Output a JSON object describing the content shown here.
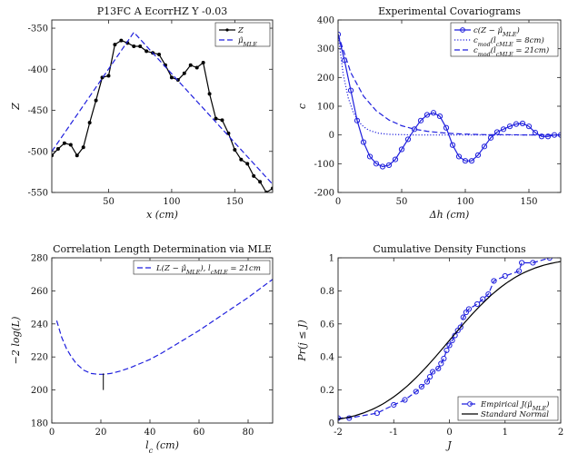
{
  "chart_data": [
    {
      "type": "line",
      "title": "P13FC A EcorrHZ Y -0.03",
      "xlabel": "x (cm)",
      "ylabel": "Z",
      "xlim": [
        5,
        180
      ],
      "ylim": [
        -550,
        -340
      ],
      "xticks": [
        50,
        100,
        150
      ],
      "yticks": [
        -550,
        -500,
        -450,
        -400,
        -350
      ],
      "xticklabels": [
        "50",
        "100",
        "150"
      ],
      "yticklabels": [
        "-550",
        "-500",
        "-450",
        "-400",
        "-350"
      ],
      "legend_position": "top-right",
      "series": [
        {
          "name": "Z",
          "style": "solid-marker-dot",
          "color": "#000000",
          "x": [
            5,
            10,
            15,
            20,
            25,
            30,
            35,
            40,
            45,
            50,
            55,
            60,
            65,
            70,
            75,
            80,
            85,
            90,
            95,
            100,
            105,
            110,
            115,
            120,
            125,
            130,
            135,
            140,
            145,
            150,
            155,
            160,
            165,
            170,
            175,
            180
          ],
          "y": [
            -505,
            -497,
            -490,
            -492,
            -505,
            -495,
            -465,
            -438,
            -410,
            -408,
            -370,
            -365,
            -368,
            -372,
            -372,
            -378,
            -380,
            -382,
            -395,
            -410,
            -413,
            -405,
            -395,
            -398,
            -392,
            -430,
            -460,
            -462,
            -478,
            -498,
            -510,
            -515,
            -530,
            -537,
            -550,
            -545
          ]
        },
        {
          "name": "μ̂_MLE",
          "style": "dashed",
          "color": "#1f1fdd",
          "x": [
            5,
            70,
            180
          ],
          "y": [
            -500,
            -355,
            -540
          ]
        }
      ]
    },
    {
      "type": "line",
      "title": "Experimental Covariograms",
      "xlabel": "Δh (cm)",
      "ylabel": "c",
      "xlim": [
        0,
        175
      ],
      "ylim": [
        -200,
        400
      ],
      "xticks": [
        0,
        50,
        100,
        150
      ],
      "yticks": [
        -200,
        -100,
        0,
        100,
        200,
        300,
        400
      ],
      "xticklabels": [
        "0",
        "50",
        "100",
        "150"
      ],
      "yticklabels": [
        "-200",
        "-100",
        "0",
        "100",
        "200",
        "300",
        "400"
      ],
      "legend_position": "top-right",
      "series": [
        {
          "name": "c(Z − μ̂_MLE)",
          "style": "solid-marker-circle",
          "color": "#1f1fdd",
          "x": [
            0,
            5,
            10,
            15,
            20,
            25,
            30,
            35,
            40,
            45,
            50,
            55,
            60,
            65,
            70,
            75,
            80,
            85,
            90,
            95,
            100,
            105,
            110,
            115,
            120,
            125,
            130,
            135,
            140,
            145,
            150,
            155,
            160,
            165,
            170,
            175
          ],
          "y": [
            350,
            260,
            155,
            50,
            -25,
            -75,
            -100,
            -110,
            -105,
            -85,
            -50,
            -15,
            20,
            50,
            70,
            77,
            65,
            25,
            -35,
            -75,
            -90,
            -90,
            -70,
            -40,
            -10,
            10,
            20,
            30,
            38,
            40,
            30,
            8,
            -5,
            -5,
            0,
            0
          ]
        },
        {
          "name": "c_mod(l_cMLE = 8cm)",
          "style": "dotted",
          "color": "#1f1fdd",
          "x": [
            0,
            4,
            8,
            12,
            16,
            20,
            24,
            28,
            32,
            40,
            50,
            60,
            80,
            100,
            125,
            150,
            175
          ],
          "y": [
            350,
            212,
            129,
            78,
            47,
            29,
            17,
            11,
            6,
            2,
            1,
            0,
            0,
            0,
            0,
            0,
            0
          ]
        },
        {
          "name": "c_mod(l_cMLE = 21cm)",
          "style": "dashed",
          "color": "#1f1fdd",
          "x": [
            0,
            10,
            20,
            30,
            40,
            50,
            60,
            70,
            80,
            90,
            100,
            115,
            130,
            150,
            175
          ],
          "y": [
            350,
            217,
            135,
            84,
            52,
            32,
            20,
            13,
            8,
            5,
            3,
            1,
            1,
            0,
            0
          ]
        }
      ]
    },
    {
      "type": "line",
      "title": "Correlation Length Determination via MLE",
      "xlabel": "l_c (cm)",
      "ylabel": "−2 log(L)",
      "xlim": [
        0,
        90
      ],
      "ylim": [
        180,
        280
      ],
      "xticks": [
        0,
        20,
        40,
        60,
        80
      ],
      "yticks": [
        180,
        200,
        220,
        240,
        260,
        280
      ],
      "xticklabels": [
        "0",
        "20",
        "40",
        "60",
        "80"
      ],
      "yticklabels": [
        "180",
        "200",
        "220",
        "240",
        "260",
        "280"
      ],
      "legend_position": "top-right",
      "marker_line": {
        "x": 21,
        "y_from": 200,
        "y_to": 210
      },
      "series": [
        {
          "name": "L(Z − μ̂_MLE), l_cMLE = 21cm",
          "style": "dashed",
          "color": "#1f1fdd",
          "x": [
            2,
            4,
            6,
            8,
            10,
            13,
            16,
            19,
            21,
            24,
            28,
            32,
            36,
            40,
            45,
            50,
            55,
            60,
            65,
            70,
            75,
            80,
            85,
            90
          ],
          "y": [
            242,
            232,
            225,
            220,
            216,
            212,
            210,
            209.5,
            209.5,
            210,
            211.5,
            213.5,
            216,
            218.5,
            222.5,
            227,
            231.5,
            236,
            241,
            246,
            251,
            256,
            261.5,
            267
          ]
        }
      ]
    },
    {
      "type": "line",
      "title": "Cumulative Density Functions",
      "xlabel": "J",
      "ylabel": "Pr(j ≤ J)",
      "xlim": [
        -2,
        2
      ],
      "ylim": [
        0,
        1
      ],
      "xticks": [
        -2,
        -1,
        0,
        1,
        2
      ],
      "yticks": [
        0,
        0.2,
        0.4,
        0.6,
        0.8,
        1
      ],
      "xticklabels": [
        "-2",
        "-1",
        "0",
        "1",
        "2"
      ],
      "yticklabels": [
        "0",
        "0.2",
        "0.4",
        "0.6",
        "0.8",
        "1"
      ],
      "legend_position": "bottom-right",
      "series": [
        {
          "name": "Empirical J(μ̂_MLE)",
          "style": "dashed-marker-circle",
          "color": "#1f1fdd",
          "x": [
            -2.0,
            -1.8,
            -1.3,
            -1.0,
            -0.8,
            -0.6,
            -0.5,
            -0.4,
            -0.35,
            -0.3,
            -0.2,
            -0.15,
            -0.1,
            -0.05,
            0.0,
            0.05,
            0.1,
            0.15,
            0.2,
            0.25,
            0.3,
            0.35,
            0.5,
            0.6,
            0.7,
            0.8,
            1.0,
            1.25,
            1.3,
            1.5,
            1.8
          ],
          "y": [
            0.03,
            0.03,
            0.06,
            0.11,
            0.14,
            0.19,
            0.22,
            0.25,
            0.28,
            0.31,
            0.33,
            0.36,
            0.39,
            0.44,
            0.47,
            0.5,
            0.53,
            0.56,
            0.58,
            0.64,
            0.67,
            0.69,
            0.72,
            0.75,
            0.78,
            0.86,
            0.89,
            0.92,
            0.97,
            0.97,
            1.0
          ]
        },
        {
          "name": "Standard Normal",
          "style": "solid",
          "color": "#000000",
          "function": "normal-cdf"
        }
      ]
    }
  ]
}
